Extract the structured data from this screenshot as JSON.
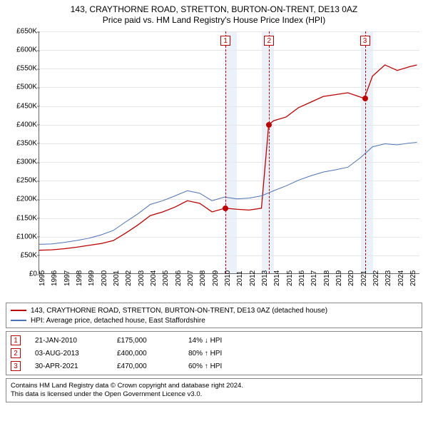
{
  "title": {
    "line1": "143, CRAYTHORNE ROAD, STRETTON, BURTON-ON-TRENT, DE13 0AZ",
    "line2": "Price paid vs. HM Land Registry's House Price Index (HPI)"
  },
  "chart": {
    "type": "line",
    "background_color": "#ffffff",
    "grid_color": "#e6e6e6",
    "shade_color": "#eaf1f9",
    "axis_color": "#666666",
    "label_fontsize": 10,
    "x": {
      "min": 1995,
      "max": 2025.8,
      "tick_step": 1,
      "labels": [
        "1995",
        "1996",
        "1997",
        "1998",
        "1999",
        "2000",
        "2001",
        "2002",
        "2003",
        "2004",
        "2005",
        "2006",
        "2007",
        "2008",
        "2009",
        "2010",
        "2011",
        "2012",
        "2013",
        "2014",
        "2015",
        "2016",
        "2017",
        "2018",
        "2019",
        "2020",
        "2021",
        "2022",
        "2023",
        "2024",
        "2025"
      ]
    },
    "y": {
      "min": 0,
      "max": 650000,
      "tick_step": 50000,
      "labels": [
        "£0",
        "£50K",
        "£100K",
        "£150K",
        "£200K",
        "£250K",
        "£300K",
        "£350K",
        "£400K",
        "£450K",
        "£500K",
        "£550K",
        "£600K",
        "£650K"
      ]
    },
    "shaded_years": [
      2010,
      2013,
      2021
    ],
    "event_markers": [
      {
        "id": "1",
        "year": 2010.06
      },
      {
        "id": "2",
        "year": 2013.59
      },
      {
        "id": "3",
        "year": 2021.33
      }
    ],
    "series": [
      {
        "id": "property",
        "color": "#c00000",
        "width": 1.3,
        "label": "143, CRAYTHORNE ROAD, STRETTON, BURTON-ON-TRENT, DE13 0AZ (detached house)",
        "points": [
          [
            1995,
            62000
          ],
          [
            1996,
            63000
          ],
          [
            1997,
            66000
          ],
          [
            1998,
            70000
          ],
          [
            1999,
            75000
          ],
          [
            2000,
            80000
          ],
          [
            2001,
            88000
          ],
          [
            2002,
            108000
          ],
          [
            2003,
            130000
          ],
          [
            2004,
            155000
          ],
          [
            2005,
            165000
          ],
          [
            2006,
            178000
          ],
          [
            2007,
            195000
          ],
          [
            2008,
            188000
          ],
          [
            2009,
            165000
          ],
          [
            2010.06,
            175000
          ],
          [
            2011,
            172000
          ],
          [
            2012,
            170000
          ],
          [
            2013,
            175000
          ],
          [
            2013.59,
            400000
          ],
          [
            2014,
            410000
          ],
          [
            2015,
            420000
          ],
          [
            2016,
            445000
          ],
          [
            2017,
            460000
          ],
          [
            2018,
            475000
          ],
          [
            2019,
            480000
          ],
          [
            2020,
            485000
          ],
          [
            2021.33,
            470000
          ],
          [
            2022,
            530000
          ],
          [
            2023,
            560000
          ],
          [
            2024,
            545000
          ],
          [
            2025,
            555000
          ],
          [
            2025.6,
            560000
          ]
        ]
      },
      {
        "id": "hpi",
        "color": "#4a72b8",
        "width": 1.0,
        "label": "HPI: Average price, detached house, East Staffordshire",
        "points": [
          [
            1995,
            78000
          ],
          [
            1996,
            79000
          ],
          [
            1997,
            83000
          ],
          [
            1998,
            88000
          ],
          [
            1999,
            94000
          ],
          [
            2000,
            103000
          ],
          [
            2001,
            115000
          ],
          [
            2002,
            138000
          ],
          [
            2003,
            160000
          ],
          [
            2004,
            185000
          ],
          [
            2005,
            195000
          ],
          [
            2006,
            208000
          ],
          [
            2007,
            222000
          ],
          [
            2008,
            215000
          ],
          [
            2009,
            195000
          ],
          [
            2010,
            205000
          ],
          [
            2011,
            200000
          ],
          [
            2012,
            202000
          ],
          [
            2013,
            208000
          ],
          [
            2014,
            222000
          ],
          [
            2015,
            235000
          ],
          [
            2016,
            250000
          ],
          [
            2017,
            262000
          ],
          [
            2018,
            272000
          ],
          [
            2019,
            278000
          ],
          [
            2020,
            285000
          ],
          [
            2021,
            310000
          ],
          [
            2022,
            340000
          ],
          [
            2023,
            348000
          ],
          [
            2024,
            345000
          ],
          [
            2025,
            350000
          ],
          [
            2025.6,
            352000
          ]
        ]
      }
    ],
    "sale_dots": [
      {
        "year": 2010.06,
        "price": 175000
      },
      {
        "year": 2013.59,
        "price": 400000
      },
      {
        "year": 2021.33,
        "price": 470000
      }
    ]
  },
  "legend": {
    "rows": [
      {
        "color": "#c00000",
        "label": "143, CRAYTHORNE ROAD, STRETTON, BURTON-ON-TRENT, DE13 0AZ (detached house)"
      },
      {
        "color": "#4a72b8",
        "label": "HPI: Average price, detached house, East Staffordshire"
      }
    ]
  },
  "transactions": [
    {
      "id": "1",
      "date": "21-JAN-2010",
      "price": "£175,000",
      "vs_hpi": "14% ↓ HPI"
    },
    {
      "id": "2",
      "date": "03-AUG-2013",
      "price": "£400,000",
      "vs_hpi": "80% ↑ HPI"
    },
    {
      "id": "3",
      "date": "30-APR-2021",
      "price": "£470,000",
      "vs_hpi": "60% ↑ HPI"
    }
  ],
  "license": {
    "line1": "Contains HM Land Registry data © Crown copyright and database right 2024.",
    "line2": "This data is licensed under the Open Government Licence v3.0."
  }
}
